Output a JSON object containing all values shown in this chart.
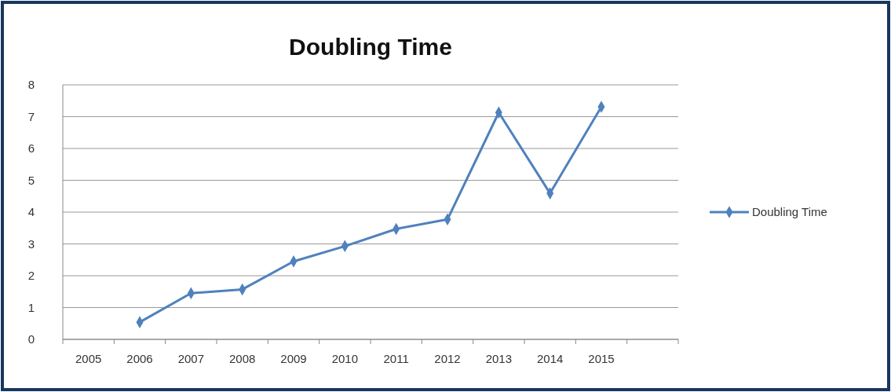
{
  "chart_data": {
    "type": "line",
    "title": "Doubling Time",
    "categories": [
      "2005",
      "2006",
      "2007",
      "2008",
      "2009",
      "2010",
      "2011",
      "2012",
      "2013",
      "2014",
      "2015",
      null
    ],
    "series": [
      {
        "name": "Doubling Time",
        "color": "#4f81bd",
        "values": [
          null,
          0.54,
          1.45,
          1.57,
          2.45,
          2.93,
          3.47,
          3.77,
          7.13,
          4.59,
          7.31,
          null
        ]
      }
    ],
    "ylim": [
      0,
      8
    ],
    "yticks": [
      0,
      1,
      2,
      3,
      4,
      5,
      6,
      7,
      8
    ],
    "grid": "y",
    "legend": "right",
    "marker": "diamond",
    "line_style": "solid"
  }
}
